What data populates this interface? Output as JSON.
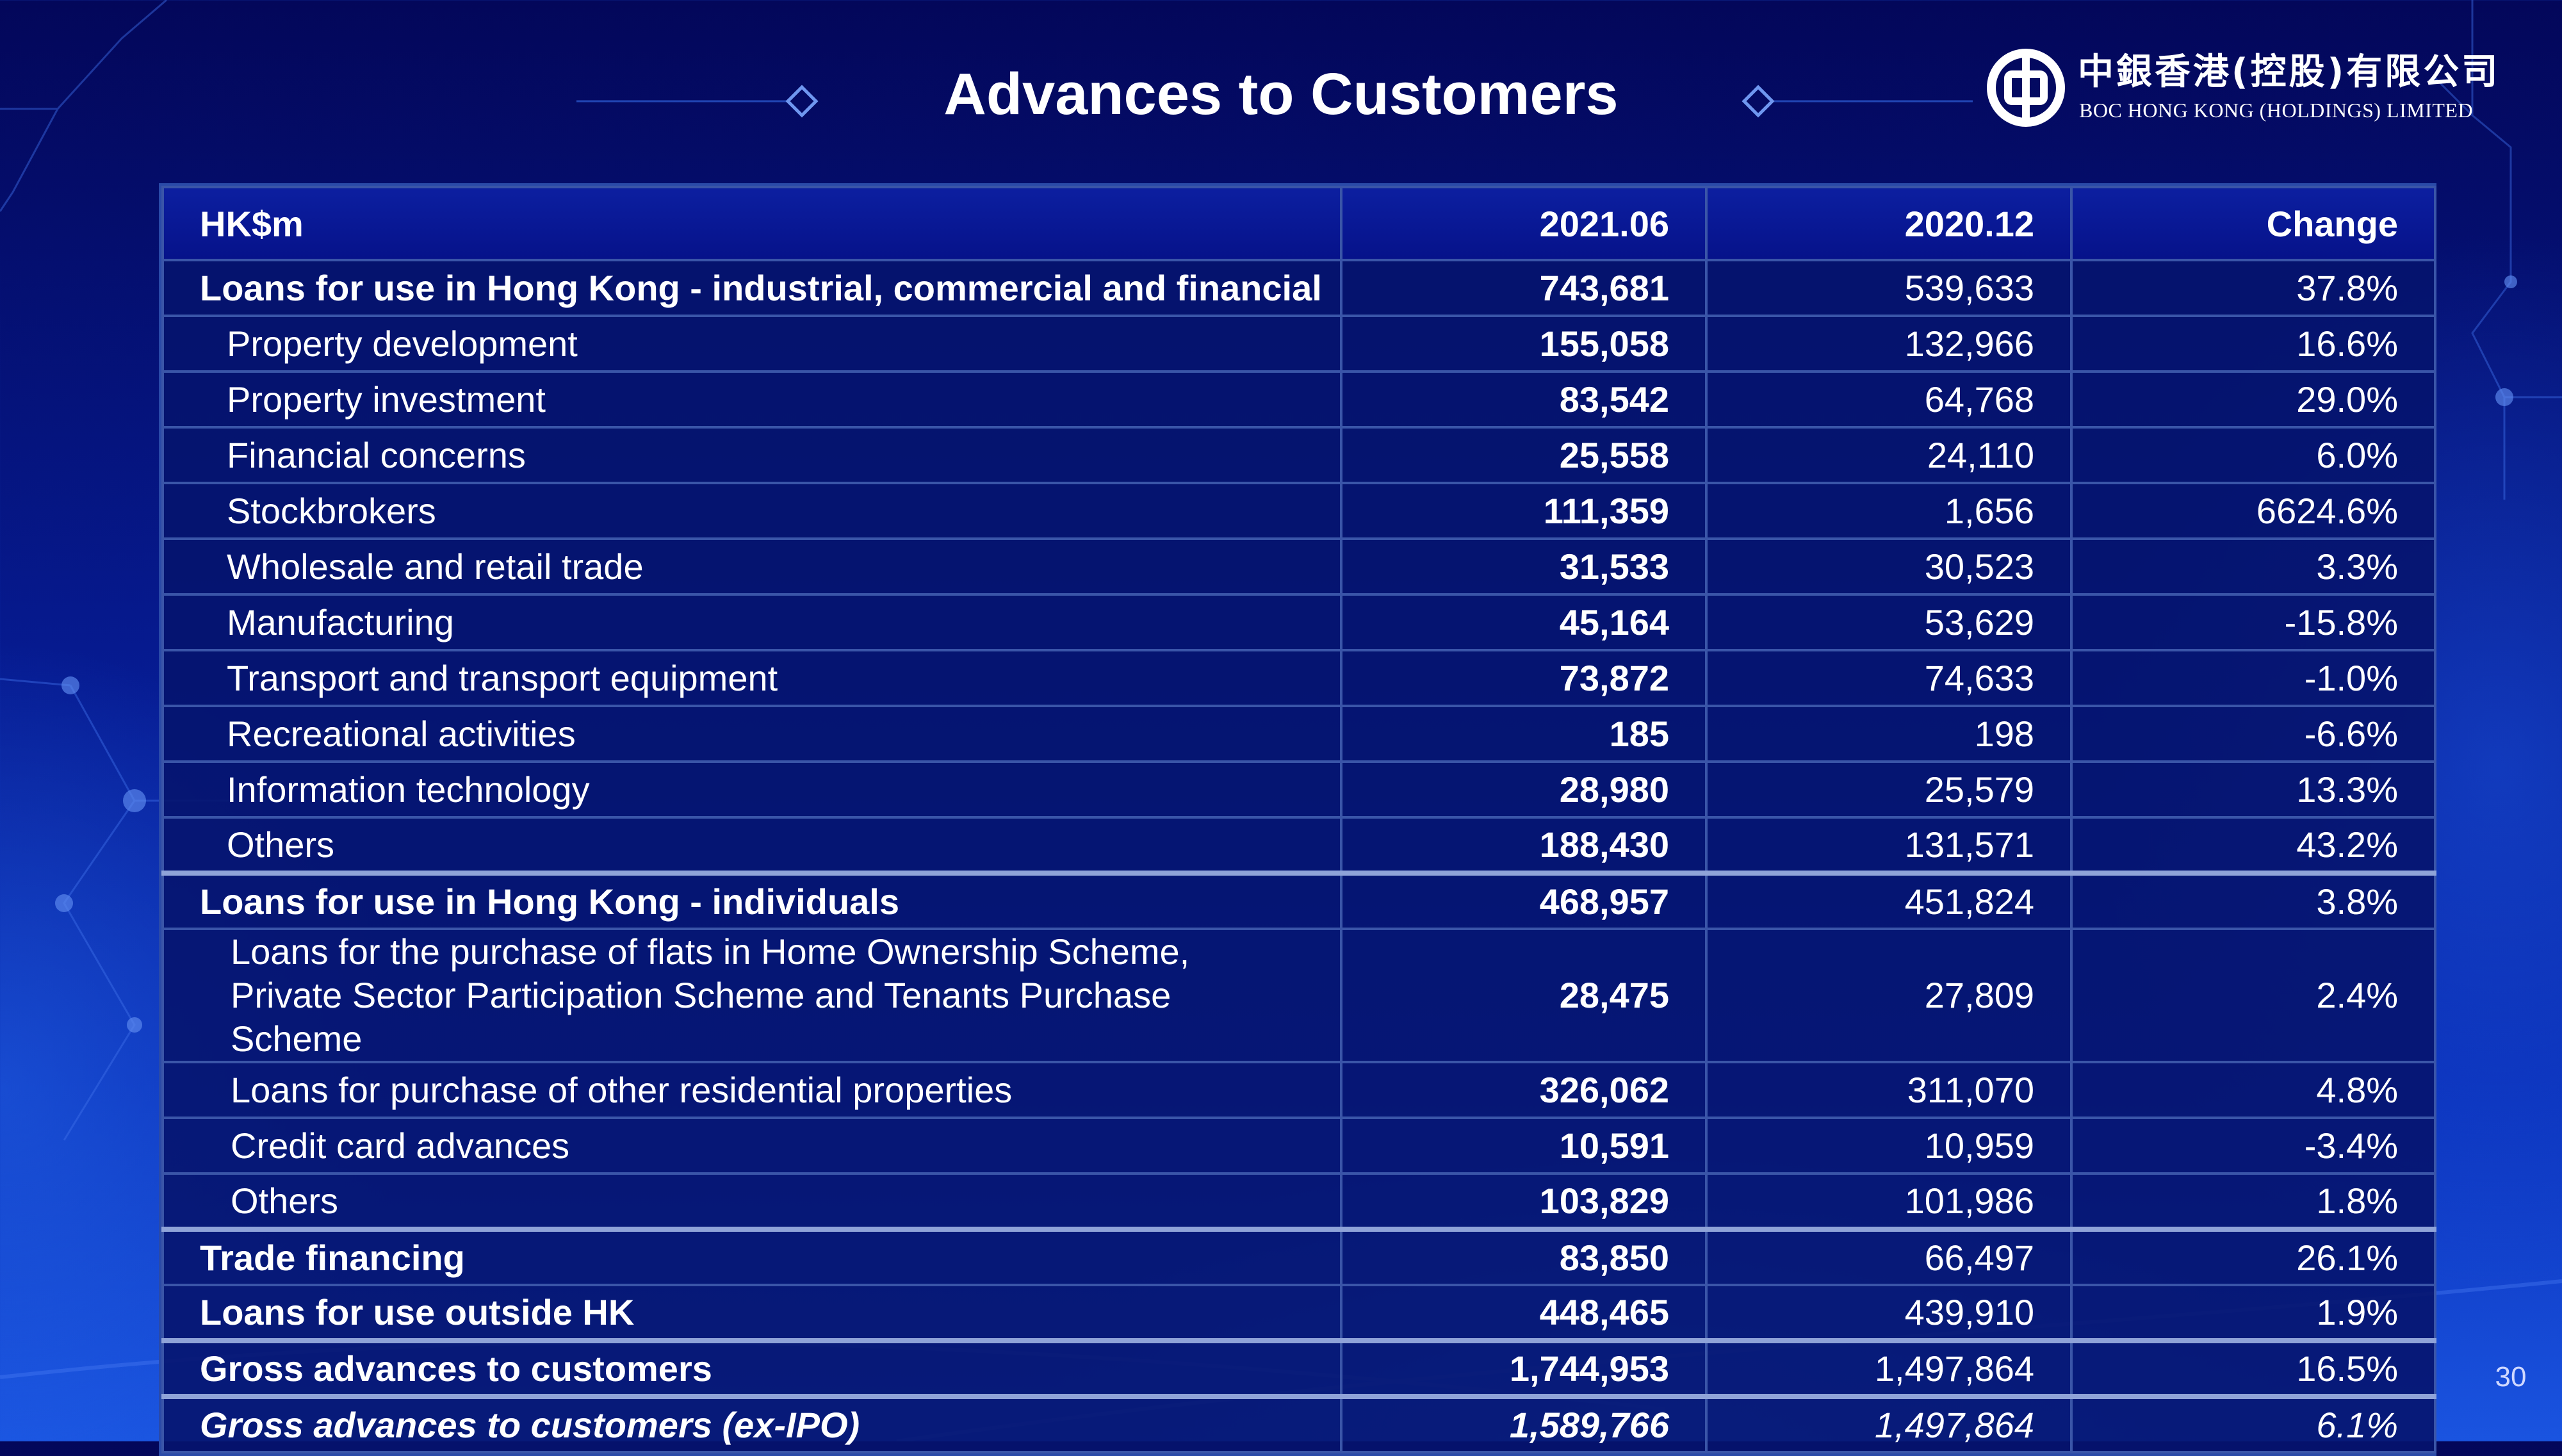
{
  "title": "Advances to Customers",
  "logo": {
    "chinese": "中銀香港(控股)有限公司",
    "english": "BOC HONG KONG (HOLDINGS) LIMITED"
  },
  "table": {
    "headers": [
      "HK$m",
      "2021.06",
      "2020.12",
      "Change"
    ],
    "rows": [
      {
        "label": "Loans for use in Hong Kong - industrial, commercial and financial",
        "v2021": "743,681",
        "v2020": "539,633",
        "change": "37.8%"
      },
      {
        "label": "Property development",
        "v2021": "155,058",
        "v2020": "132,966",
        "change": "16.6%"
      },
      {
        "label": "Property investment",
        "v2021": "83,542",
        "v2020": "64,768",
        "change": "29.0%"
      },
      {
        "label": "Financial concerns",
        "v2021": "25,558",
        "v2020": "24,110",
        "change": "6.0%"
      },
      {
        "label": "Stockbrokers",
        "v2021": "111,359",
        "v2020": "1,656",
        "change": "6624.6%"
      },
      {
        "label": "Wholesale and retail trade",
        "v2021": "31,533",
        "v2020": "30,523",
        "change": "3.3%"
      },
      {
        "label": "Manufacturing",
        "v2021": "45,164",
        "v2020": "53,629",
        "change": "-15.8%"
      },
      {
        "label": "Transport and transport equipment",
        "v2021": "73,872",
        "v2020": "74,633",
        "change": "-1.0%"
      },
      {
        "label": "Recreational activities",
        "v2021": "185",
        "v2020": "198",
        "change": "-6.6%"
      },
      {
        "label": "Information technology",
        "v2021": "28,980",
        "v2020": "25,579",
        "change": "13.3%"
      },
      {
        "label": "Others",
        "v2021": "188,430",
        "v2020": "131,571",
        "change": "43.2%"
      },
      {
        "label": "Loans for use in Hong Kong - individuals",
        "v2021": "468,957",
        "v2020": "451,824",
        "change": "3.8%"
      },
      {
        "label_line1": "Loans for the purchase of flats in Home Ownership Scheme,",
        "label_line2": "Private Sector Participation Scheme and Tenants Purchase Scheme",
        "v2021": "28,475",
        "v2020": "27,809",
        "change": "2.4%"
      },
      {
        "label": "Loans for purchase of other residential properties",
        "v2021": "326,062",
        "v2020": "311,070",
        "change": "4.8%"
      },
      {
        "label": "Credit card advances",
        "v2021": "10,591",
        "v2020": "10,959",
        "change": "-3.4%"
      },
      {
        "label": "Others",
        "v2021": "103,829",
        "v2020": "101,986",
        "change": "1.8%"
      },
      {
        "label": "Trade financing",
        "v2021": "83,850",
        "v2020": "66,497",
        "change": "26.1%"
      },
      {
        "label": "Loans for use outside HK",
        "v2021": "448,465",
        "v2020": "439,910",
        "change": "1.9%"
      },
      {
        "label": "Gross advances to customers",
        "v2021": "1,744,953",
        "v2020": "1,497,864",
        "change": "16.5%"
      },
      {
        "label": "Gross advances to customers (ex-IPO)",
        "v2021": "1,589,766",
        "v2020": "1,497,864",
        "change": "6.1%"
      }
    ]
  },
  "page_number": "30",
  "colors": {
    "background_top": "#03075a",
    "background_bottom": "#1a54e0",
    "table_border": "#3a55a8",
    "text": "#ffffff"
  }
}
